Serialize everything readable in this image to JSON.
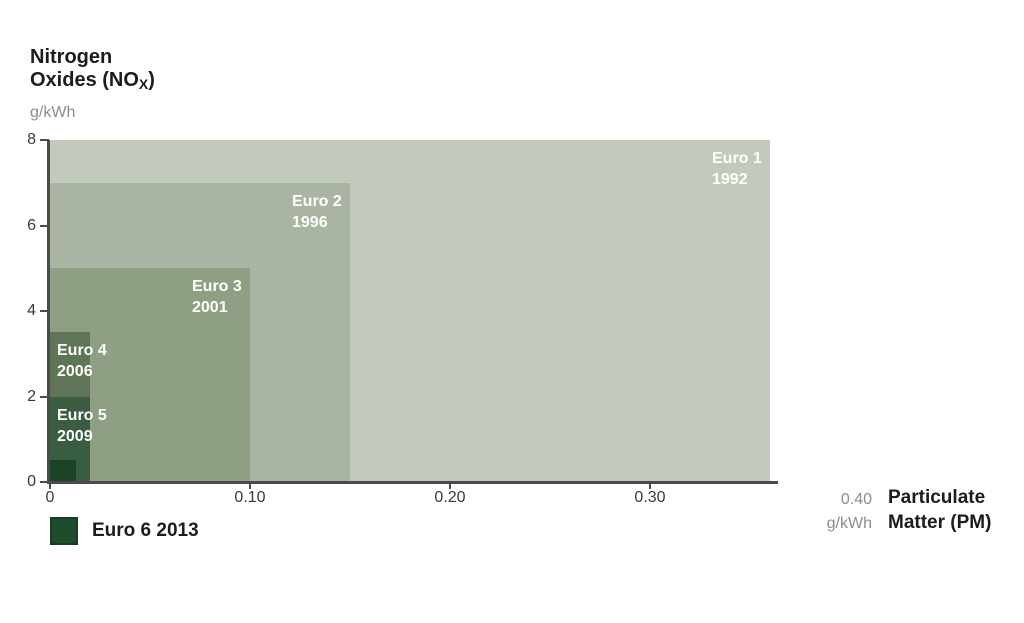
{
  "page": {
    "background": "#ffffff"
  },
  "y_axis_header": {
    "title_line1": "Nitrogen",
    "title_line2_pre": "Oxides (NO",
    "title_sub": "X",
    "title_line2_post": ")",
    "unit": "g/kWh"
  },
  "x_axis_footer": {
    "end_tick": "0.40",
    "unit": "g/kWh",
    "title_line1": "Particulate",
    "title_line2": "Matter (PM)"
  },
  "legend": {
    "label": "Euro 6 2013",
    "swatch_color": "#1e4d2c",
    "swatch_border": "#163c21",
    "position": "bottom-left"
  },
  "chart_data": {
    "type": "area",
    "variant": "nested-rectangles showing emission limit envelopes per Euro standard",
    "title": "",
    "x_axis": {
      "label": "Particulate Matter (PM)",
      "unit": "g/kWh",
      "range": [
        0,
        0.4
      ],
      "ticks": [
        "0",
        "0.10",
        "0.20",
        "0.30"
      ],
      "end_label": "0.40"
    },
    "y_axis": {
      "label": "Nitrogen Oxides (NOX)",
      "unit": "g/kWh",
      "range": [
        0,
        8
      ],
      "ticks": [
        "0",
        "2",
        "4",
        "6",
        "8"
      ]
    },
    "grid": false,
    "axis_color": "#4b4b4b",
    "series": [
      {
        "name": "Euro 1",
        "year": "1992",
        "pm_g_per_kwh": 0.36,
        "nox_g_per_kwh": 8.0,
        "color": "#c2cabd",
        "label_color": "#ffffff",
        "labeled_in_legend": false
      },
      {
        "name": "Euro 2",
        "year": "1996",
        "pm_g_per_kwh": 0.15,
        "nox_g_per_kwh": 7.0,
        "color": "#a9b4a3",
        "label_color": "#ffffff",
        "labeled_in_legend": false
      },
      {
        "name": "Euro 3",
        "year": "2001",
        "pm_g_per_kwh": 0.1,
        "nox_g_per_kwh": 5.0,
        "color": "#8f9f84",
        "label_color": "#ffffff",
        "labeled_in_legend": false
      },
      {
        "name": "Euro 4",
        "year": "2006",
        "pm_g_per_kwh": 0.02,
        "nox_g_per_kwh": 3.5,
        "color": "#607457",
        "label_color": "#ffffff",
        "labeled_in_legend": false
      },
      {
        "name": "Euro 5",
        "year": "2009",
        "pm_g_per_kwh": 0.02,
        "nox_g_per_kwh": 2.0,
        "color": "#3a5c40",
        "label_color": "#ffffff",
        "labeled_in_legend": false
      },
      {
        "name": "Euro 6",
        "year": "2013",
        "pm_g_per_kwh": 0.01,
        "nox_g_per_kwh": 0.4,
        "color": "#1b4326",
        "label_color": null,
        "labeled_in_legend": true
      }
    ]
  }
}
